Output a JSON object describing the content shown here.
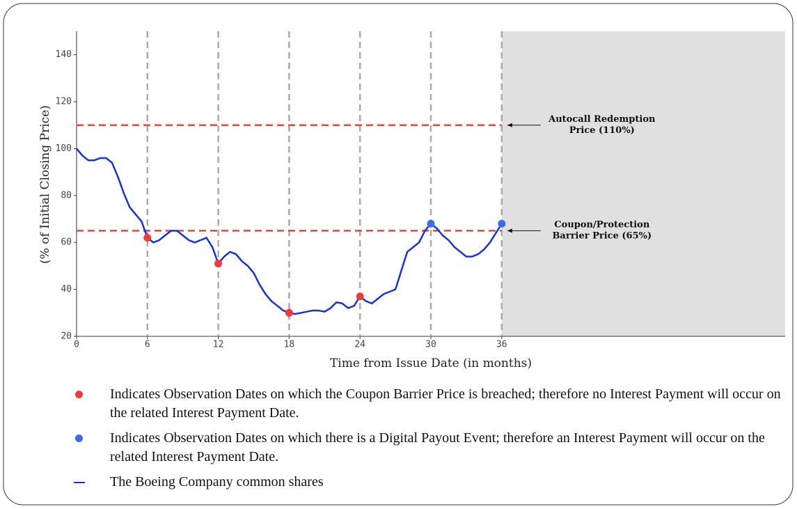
{
  "chart_data": {
    "type": "line",
    "ylabel": "(% of Initial Closing Price)",
    "xlabel": "Time from Issue Date (in months)",
    "xlim": [
      0,
      60
    ],
    "ylim": [
      20,
      150
    ],
    "xticks": [
      0,
      6,
      12,
      18,
      24,
      30,
      36
    ],
    "yticks": [
      20,
      40,
      60,
      80,
      100,
      120,
      140
    ],
    "vlines": [
      6,
      12,
      18,
      24,
      30,
      36
    ],
    "shaded_x": [
      36,
      60
    ],
    "hlines": [
      {
        "y": 110,
        "color": "#f04040",
        "label": [
          "Autocall Redemption",
          "Price (110%)"
        ]
      },
      {
        "y": 65,
        "color": "#f04040",
        "label": [
          "Coupon/Protection",
          "Barrier Price (65%)"
        ]
      }
    ],
    "series": [
      {
        "name": "The Boeing Company common shares",
        "color": "#1530e0",
        "x": [
          0,
          0.5,
          1,
          1.5,
          2,
          2.5,
          3,
          3.5,
          4,
          4.5,
          5,
          5.5,
          6,
          6.5,
          7,
          7.5,
          8,
          8.5,
          9,
          9.5,
          10,
          10.5,
          11,
          11.5,
          12,
          12.5,
          13,
          13.5,
          14,
          14.5,
          15,
          15.5,
          16,
          16.5,
          17,
          17.5,
          18,
          18.5,
          19,
          20,
          20.5,
          21,
          21.5,
          22,
          22.5,
          23,
          23.5,
          24,
          24.5,
          25,
          25.5,
          26,
          26.5,
          27,
          27.5,
          28,
          28.5,
          29,
          29.5,
          30,
          30.5,
          31,
          31.5,
          32,
          32.5,
          33,
          33.5,
          34,
          34.5,
          35,
          35.5,
          36
        ],
        "values": [
          100,
          97,
          95,
          95,
          96,
          96,
          94,
          88,
          81,
          75,
          72,
          69,
          62,
          60,
          61,
          63,
          65,
          65,
          63,
          61,
          60,
          61,
          62,
          58,
          51,
          54,
          56,
          55,
          52,
          50,
          47,
          42,
          38,
          35,
          33,
          31,
          30,
          29.5,
          30,
          31,
          31,
          30.5,
          32,
          34.5,
          34,
          32,
          33,
          37,
          35,
          34,
          36,
          38,
          39,
          40,
          48,
          56,
          58,
          60,
          65,
          68,
          66,
          63,
          61,
          58,
          56,
          54,
          54,
          55,
          57,
          60,
          64,
          68
        ]
      },
      {
        "name": "Indicates Observation Dates on which the Coupon Barrier Price is breached; therefore no Interest Payment will occur on the related Interest Payment Date.",
        "color": "#f23c3c",
        "marker": true,
        "x": [
          6,
          12,
          18,
          24
        ],
        "values": [
          62,
          51,
          30,
          37
        ]
      },
      {
        "name": "Indicates Observation Dates on which there is a Digital Payout Event; therefore an Interest Payment will occur on the related Interest Payment Date.",
        "color": "#3b6cf0",
        "marker": true,
        "x": [
          30,
          36
        ],
        "values": [
          68,
          68
        ]
      }
    ]
  }
}
